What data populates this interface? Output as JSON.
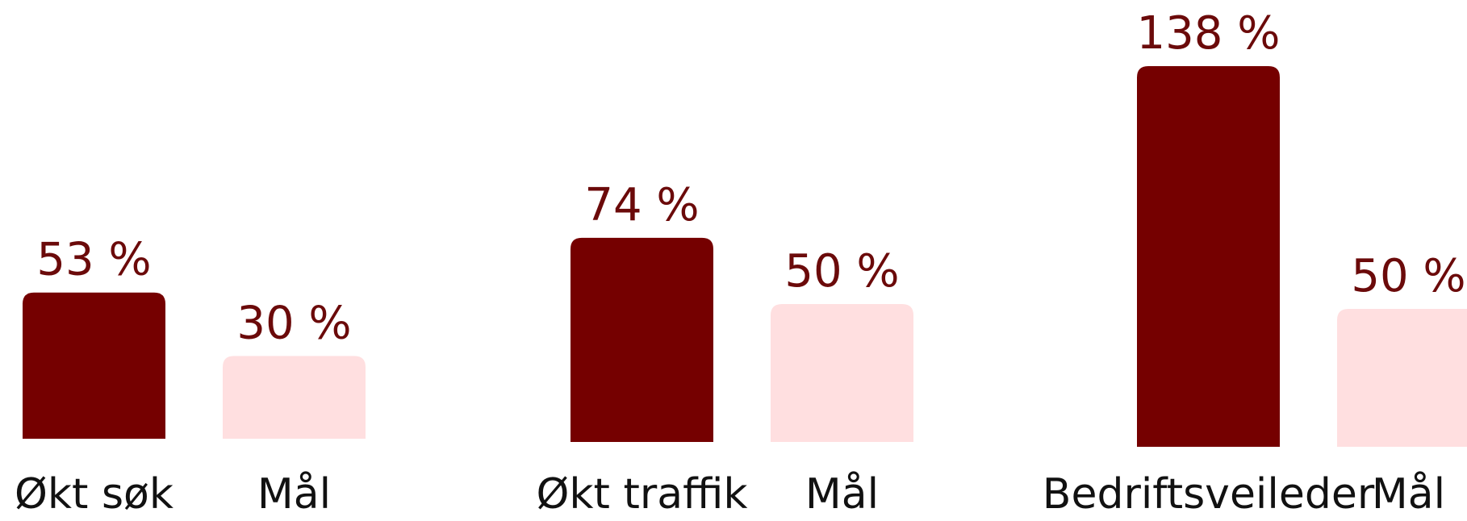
{
  "chart_data": [
    {
      "type": "bar",
      "categories": [
        "Økt søk",
        "Mål"
      ],
      "values": [
        53,
        30
      ],
      "value_labels": [
        "53 %",
        "30 %"
      ],
      "colors": [
        "#750000",
        "#ffdfe0"
      ]
    },
    {
      "type": "bar",
      "categories": [
        "Økt traffik",
        "Mål"
      ],
      "values": [
        74,
        50
      ],
      "value_labels": [
        "74 %",
        "50 %"
      ],
      "colors": [
        "#750000",
        "#ffdfe0"
      ]
    },
    {
      "type": "bar",
      "categories": [
        "Bedriftsveileder",
        "Mål"
      ],
      "values": [
        138,
        50
      ],
      "value_labels": [
        "138 %",
        "50 %"
      ],
      "colors": [
        "#750000",
        "#ffdfe0"
      ]
    }
  ]
}
